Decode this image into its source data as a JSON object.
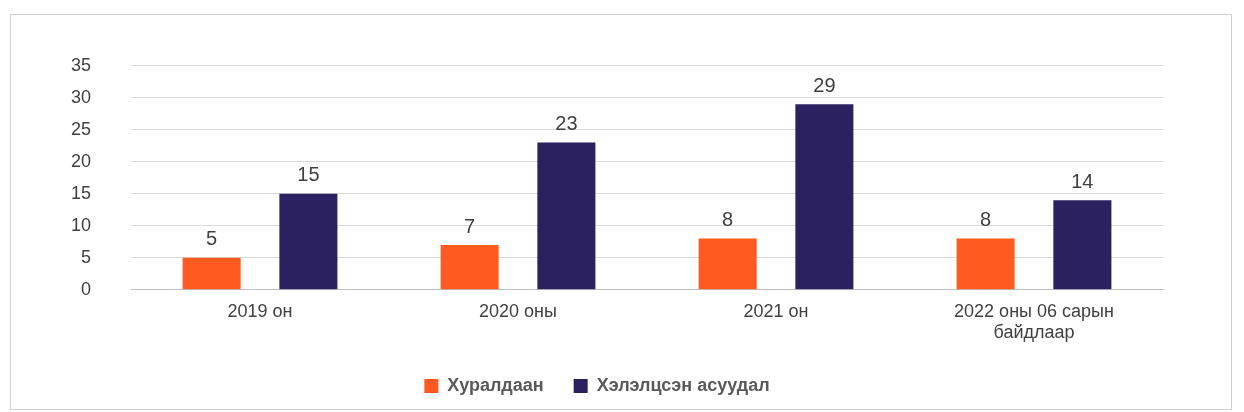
{
  "chart_data": {
    "type": "bar",
    "categories": [
      "2019 он",
      "2020 оны",
      "2021 он",
      "2022 оны 06 сарын байдлаар"
    ],
    "series": [
      {
        "name": "Хуралдаан",
        "color": "#ff5a1f",
        "values": [
          5,
          7,
          8,
          8
        ]
      },
      {
        "name": "Хэлэлцсэн асуудал",
        "color": "#2b2160",
        "values": [
          15,
          23,
          29,
          14
        ]
      }
    ],
    "ylim": [
      0,
      35
    ],
    "yticks": [
      0,
      5,
      10,
      15,
      20,
      25,
      30,
      35
    ],
    "grid": "y",
    "legend": "bottom",
    "data_labels": true
  }
}
